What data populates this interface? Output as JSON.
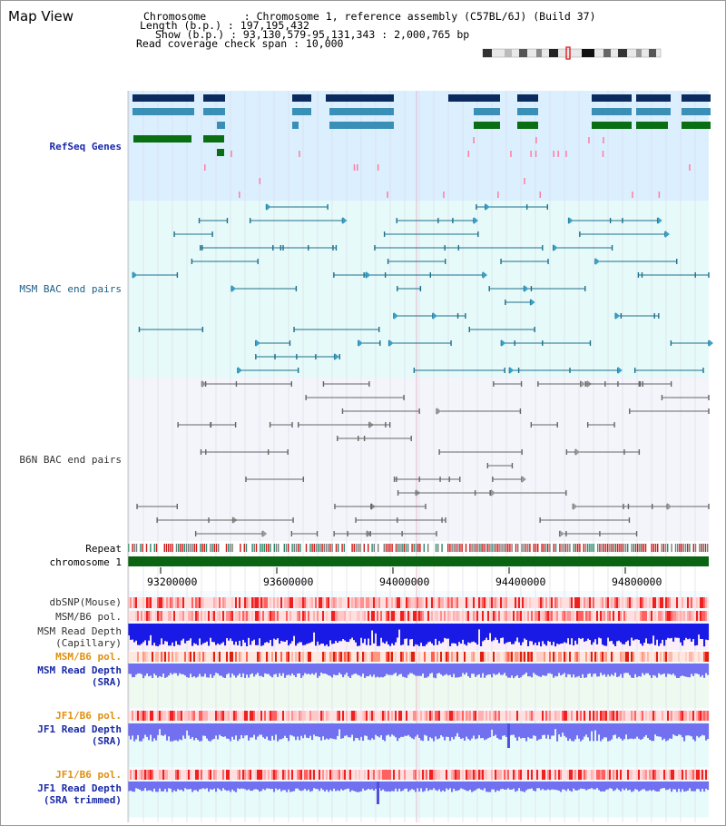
{
  "view": {
    "title": "Map View",
    "header_lines": [
      "Chromosome      : Chromosome 1, reference assembly (C57BL/6J) (Build 37)",
      "Length (b.p.) : 197,195,432",
      "Show (b.p.) : 93,130,579-95,131,343 : 2,000,765 bp",
      "Read coverage check span : 10,000"
    ]
  },
  "tracks": {
    "refseq": "RefSeq Genes",
    "msm_bac": "MSM BAC end pairs",
    "b6n_bac": "B6N BAC end pairs",
    "repeat": "Repeat",
    "chromosome": "chromosome 1",
    "dbsnp": "dbSNP(Mouse)",
    "msm_b6_pol_1": "MSM/B6 pol.",
    "msm_read_depth_cap_1": "MSM Read Depth",
    "msm_read_depth_cap_2": "(Capillary)",
    "msm_b6_pol_2": "MSM/B6 pol.",
    "msm_read_depth_sra_1": "MSM Read Depth",
    "msm_read_depth_sra_2": "(SRA)",
    "jf1_b6_pol_1": "JF1/B6 pol.",
    "jf1_read_depth_1": "JF1 Read Depth",
    "jf1_read_depth_2": "(SRA)",
    "jf1_b6_pol_2": "JF1/B6 pol.",
    "jf1_read_depth_trim_1": "JF1 Read Depth",
    "jf1_read_depth_trim_2": "(SRA trimmed)"
  },
  "axis_ticks": [
    "93200000",
    "93600000",
    "94000000",
    "94400000",
    "94800000"
  ],
  "colors": {
    "gene_dark": "#0b2a5e",
    "gene_mid": "#3a8fb7",
    "gene_green": "#0a6e12",
    "msm_pair": "#1f6f8b",
    "b6n_pair": "#666666",
    "refseq_bg": "#dcefff",
    "msm_bg": "#e6fafa",
    "b6n_bg": "#f4f4fb",
    "chrom_green": "#0b6412",
    "depth_blue": "#1a1ae6",
    "depth_light": "#7070f0"
  }
}
